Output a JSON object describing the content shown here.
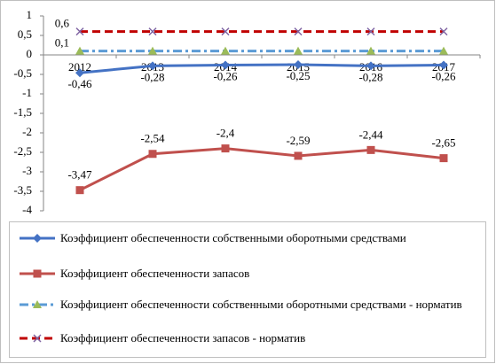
{
  "chart_data": {
    "type": "line",
    "categories": [
      "2012",
      "2013",
      "2014",
      "2015",
      "2016",
      "2017"
    ],
    "ylim": [
      -4,
      1
    ],
    "yticks": [
      {
        "value": -4,
        "label": "-4"
      },
      {
        "value": -3.5,
        "label": "-3,5"
      },
      {
        "value": -3,
        "label": "-3"
      },
      {
        "value": -2.5,
        "label": "-2,5"
      },
      {
        "value": -2,
        "label": "-2"
      },
      {
        "value": -1.5,
        "label": "-1,5"
      },
      {
        "value": -1,
        "label": "-1"
      },
      {
        "value": -0.5,
        "label": "-0,5"
      },
      {
        "value": 0,
        "label": "0"
      },
      {
        "value": 0.5,
        "label": "0,5"
      },
      {
        "value": 1,
        "label": "1"
      }
    ],
    "grid": false,
    "legend": "bottom",
    "series": [
      {
        "name": "Коэффициент обеспеченности собственными оборотными средствами",
        "color": "#4472c4",
        "marker_color": "#4472c4",
        "marker": "diamond",
        "dash": "solid",
        "label_position": "below",
        "values": [
          -0.46,
          -0.28,
          -0.26,
          -0.25,
          -0.28,
          -0.26
        ],
        "value_labels": [
          "-0,46",
          "-0,28",
          "-0,26",
          "-0,25",
          "-0,28",
          "-0,26"
        ]
      },
      {
        "name": "Коэффициент обеспеченности запасов",
        "color": "#c0504d",
        "marker_color": "#c0504d",
        "marker": "square",
        "dash": "solid",
        "label_position": "above",
        "values": [
          -3.47,
          -2.54,
          -2.4,
          -2.59,
          -2.44,
          -2.65
        ],
        "value_labels": [
          "-3,47",
          "-2,54",
          "-2,4",
          "-2,59",
          "-2,44",
          "-2,65"
        ]
      },
      {
        "name": "Коэффициент обеспеченности собственными оборотными средствами - норматив",
        "color": "#5b9bd5",
        "marker_color": "#9bbb59",
        "marker": "triangle",
        "dash": "dashdot",
        "label_position": "left",
        "values": [
          0.1,
          0.1,
          0.1,
          0.1,
          0.1,
          0.1
        ],
        "value_labels": [
          "0,1",
          null,
          null,
          null,
          null,
          null
        ]
      },
      {
        "name": "Коэффициент обеспеченности запасов - норматив",
        "color": "#c00000",
        "marker_color": "#8064a2",
        "marker": "x",
        "dash": "dash",
        "label_position": "left",
        "values": [
          0.6,
          0.6,
          0.6,
          0.6,
          0.6,
          0.6
        ],
        "value_labels": [
          "0,6",
          null,
          null,
          null,
          null,
          null
        ]
      }
    ]
  }
}
